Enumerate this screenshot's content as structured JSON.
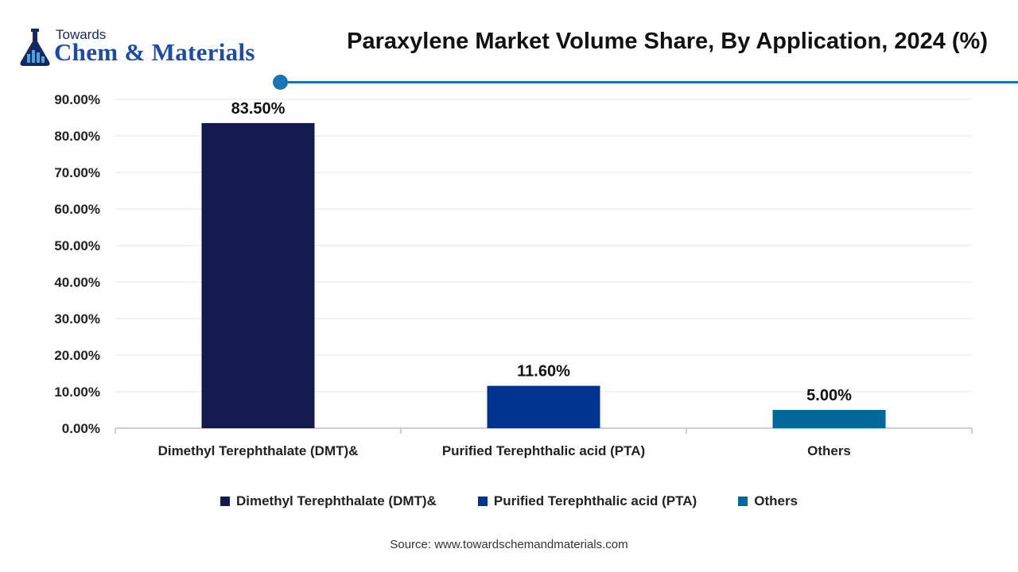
{
  "logo": {
    "line1": "Towards",
    "line2": "Chem & Materials"
  },
  "chart_data": {
    "type": "bar",
    "title": "Paraxylene Market Volume Share, By Application, 2024 (%)",
    "categories": [
      "Dimethyl Terephthalate (DMT)&",
      "Purified Terephthalic acid (PTA)",
      "Others"
    ],
    "values": [
      83.5,
      11.6,
      5.0
    ],
    "data_labels": [
      "83.50%",
      "11.60%",
      "5.00%"
    ],
    "colors": [
      "#141a4f",
      "#003490",
      "#00699b"
    ],
    "ylim": [
      0,
      90
    ],
    "yticks": [
      0,
      10,
      20,
      30,
      40,
      50,
      60,
      70,
      80,
      90
    ],
    "ytick_labels": [
      "0.00%",
      "10.00%",
      "20.00%",
      "30.00%",
      "40.00%",
      "50.00%",
      "60.00%",
      "70.00%",
      "80.00%",
      "90.00%"
    ],
    "xlabel": "",
    "ylabel": "",
    "grid": true,
    "legend_position": "bottom"
  },
  "source": "Source: www.towardschemandmaterials.com"
}
